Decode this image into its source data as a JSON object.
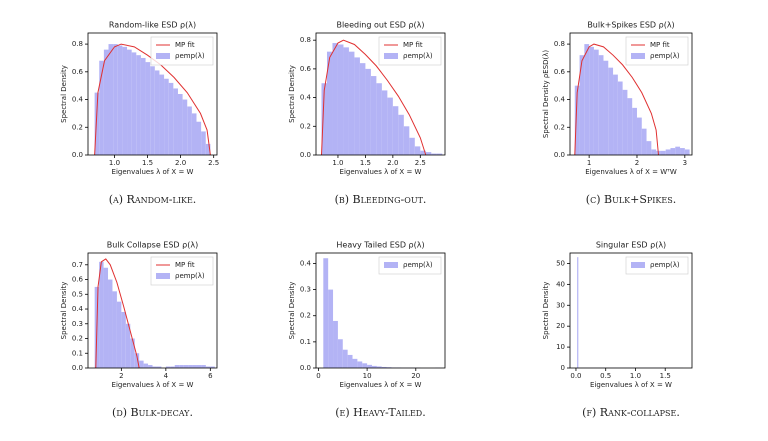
{
  "chart_data": [
    {
      "type": "histogram",
      "title": "Random-like ESD ρ(λ)",
      "xlabel": "Eigenvalues λ of X = W",
      "ylabel": "Spectral Density",
      "caption": "(a) Random-like.",
      "xlim": [
        0.6,
        2.55
      ],
      "ylim": [
        0,
        0.88
      ],
      "xticks": [
        {
          "value": 1.0,
          "label": "1.0"
        },
        1.5,
        {
          "value": 2.0,
          "label": "2.0"
        },
        2.5
      ],
      "yticks": [
        {
          "value": 0,
          "label": "0.0"
        },
        0.2,
        0.4,
        0.6,
        0.8
      ],
      "bins": [
        0.7,
        0.77,
        0.84,
        0.91,
        0.98,
        1.05,
        1.12,
        1.19,
        1.26,
        1.33,
        1.4,
        1.47,
        1.54,
        1.61,
        1.68,
        1.75,
        1.82,
        1.89,
        1.96,
        2.03,
        2.1,
        2.17,
        2.24,
        2.31,
        2.38,
        2.45
      ],
      "series": [
        {
          "name": "ρemp(λ)",
          "color": "#b3b3f5",
          "values": [
            0.45,
            0.68,
            0.76,
            0.8,
            0.8,
            0.79,
            0.78,
            0.76,
            0.74,
            0.72,
            0.7,
            0.67,
            0.64,
            0.61,
            0.58,
            0.55,
            0.52,
            0.48,
            0.44,
            0.4,
            0.35,
            0.3,
            0.24,
            0.17,
            0.08
          ]
        }
      ],
      "fit": {
        "name": "MP fit",
        "color": "#e03030",
        "x": [
          0.7,
          0.75,
          0.85,
          1.0,
          1.1,
          1.3,
          1.5,
          1.7,
          1.9,
          2.1,
          2.3,
          2.4,
          2.45
        ],
        "values": [
          0,
          0.45,
          0.68,
          0.78,
          0.8,
          0.78,
          0.72,
          0.65,
          0.56,
          0.45,
          0.3,
          0.18,
          0
        ]
      }
    },
    {
      "type": "histogram",
      "title": "Bleeding out ESD ρ(λ)",
      "xlabel": "Eigenvalues λ of X = W",
      "ylabel": "Spectral Density",
      "caption": "(b) Bleeding-out.",
      "xlim": [
        0.6,
        2.95
      ],
      "ylim": [
        0,
        0.85
      ],
      "xticks": [
        {
          "value": 1.0,
          "label": "1.0"
        },
        1.5,
        {
          "value": 2.0,
          "label": "2.0"
        },
        2.5
      ],
      "yticks": [
        {
          "value": 0,
          "label": "0.0"
        },
        0.2,
        0.4,
        0.6,
        0.8
      ],
      "bins": [
        0.7,
        0.8,
        0.9,
        1.0,
        1.1,
        1.2,
        1.3,
        1.4,
        1.5,
        1.6,
        1.7,
        1.8,
        1.9,
        2.0,
        2.1,
        2.2,
        2.3,
        2.4,
        2.5,
        2.6,
        2.7,
        2.8,
        2.9
      ],
      "series": [
        {
          "name": "ρemp(λ)",
          "color": "#b3b3f5",
          "values": [
            0.5,
            0.72,
            0.78,
            0.77,
            0.75,
            0.72,
            0.68,
            0.64,
            0.6,
            0.55,
            0.5,
            0.45,
            0.4,
            0.34,
            0.28,
            0.2,
            0.12,
            0.06,
            0.03,
            0.02,
            0.01,
            0.01
          ]
        }
      ],
      "fit": {
        "name": "MP fit",
        "color": "#e03030",
        "x": [
          0.7,
          0.75,
          0.85,
          1.0,
          1.1,
          1.3,
          1.5,
          1.7,
          1.9,
          2.1,
          2.3,
          2.5,
          2.6
        ],
        "values": [
          0,
          0.45,
          0.68,
          0.78,
          0.8,
          0.77,
          0.7,
          0.62,
          0.52,
          0.41,
          0.28,
          0.12,
          0
        ]
      }
    },
    {
      "type": "histogram",
      "title": "Bulk+Spikes ESD ρ(λ)",
      "xlabel": "Eigenvalues λ of X = WᵀW",
      "ylabel": "Spectral Density ρESD(λ)",
      "caption": "(c) Bulk+Spikes.",
      "xlim": [
        0.6,
        3.15
      ],
      "ylim": [
        0,
        0.88
      ],
      "xticks": [
        1,
        2,
        3
      ],
      "yticks": [
        {
          "value": 0,
          "label": "0.0"
        },
        0.2,
        0.4,
        0.6,
        0.8
      ],
      "bins": [
        0.7,
        0.8,
        0.9,
        1.0,
        1.1,
        1.2,
        1.3,
        1.4,
        1.5,
        1.6,
        1.7,
        1.8,
        1.9,
        2.0,
        2.1,
        2.2,
        2.3,
        2.4,
        2.5,
        2.6,
        2.7,
        2.8,
        2.9,
        3.0,
        3.1
      ],
      "series": [
        {
          "name": "ρemp(λ)",
          "color": "#b3b3f5",
          "values": [
            0.5,
            0.72,
            0.8,
            0.78,
            0.76,
            0.72,
            0.68,
            0.63,
            0.58,
            0.53,
            0.47,
            0.41,
            0.34,
            0.27,
            0.19,
            0.1,
            0.04,
            0.03,
            0.03,
            0.04,
            0.05,
            0.06,
            0.05,
            0.04
          ]
        }
      ],
      "fit": {
        "name": "MP fit",
        "color": "#e03030",
        "x": [
          0.7,
          0.75,
          0.85,
          1.0,
          1.1,
          1.3,
          1.5,
          1.7,
          1.9,
          2.1,
          2.3,
          2.4,
          2.45
        ],
        "values": [
          0,
          0.45,
          0.68,
          0.78,
          0.8,
          0.78,
          0.72,
          0.65,
          0.56,
          0.45,
          0.3,
          0.18,
          0
        ]
      }
    },
    {
      "type": "histogram",
      "title": "Bulk Collapse ESD ρ(λ)",
      "xlabel": "Eigenvalues λ of X = W",
      "ylabel": "Spectral Density",
      "caption": "(d) Bulk-decay.",
      "xlim": [
        0.5,
        6.3
      ],
      "ylim": [
        0,
        0.78
      ],
      "xticks": [
        2,
        4,
        6
      ],
      "yticks": [
        {
          "value": 0,
          "label": "0.0"
        },
        0.1,
        0.2,
        0.3,
        0.4,
        0.5,
        0.6,
        0.7
      ],
      "bins": [
        0.8,
        1.0,
        1.2,
        1.4,
        1.6,
        1.8,
        2.0,
        2.2,
        2.4,
        2.6,
        2.8,
        3.0,
        3.2,
        3.4,
        3.6,
        3.8,
        4.0,
        4.2,
        4.4,
        4.6,
        4.8,
        5.0,
        5.2,
        5.4,
        5.6,
        5.8,
        6.0,
        6.2
      ],
      "series": [
        {
          "name": "ρemp(λ)",
          "color": "#b3b3f5",
          "values": [
            0.55,
            0.72,
            0.68,
            0.6,
            0.52,
            0.45,
            0.38,
            0.3,
            0.2,
            0.1,
            0.05,
            0.03,
            0.02,
            0.01,
            0.01,
            0,
            0.01,
            0.01,
            0.02,
            0.02,
            0.02,
            0.02,
            0.02,
            0.02,
            0.02,
            0.01,
            0.01
          ]
        }
      ],
      "fit": {
        "name": "MP fit",
        "color": "#e03030",
        "x": [
          0.85,
          0.95,
          1.1,
          1.3,
          1.5,
          1.8,
          2.1,
          2.4,
          2.7,
          2.8
        ],
        "values": [
          0,
          0.55,
          0.72,
          0.74,
          0.7,
          0.58,
          0.42,
          0.25,
          0.08,
          0
        ]
      }
    },
    {
      "type": "histogram",
      "title": "Heavy Tailed ESD ρ(λ)",
      "xlabel": "Eigenvalues λ of X = W",
      "ylabel": "Spectral Density",
      "caption": "(e) Heavy-Tailed.",
      "xlim": [
        -0.5,
        26
      ],
      "ylim": [
        0,
        0.44
      ],
      "xticks": [
        0,
        10,
        20
      ],
      "yticks": [
        {
          "value": 0,
          "label": "0.0"
        },
        0.1,
        0.2,
        0.3,
        0.4
      ],
      "bins": [
        1,
        2,
        3,
        4,
        5,
        6,
        7,
        8,
        9,
        10,
        11,
        12,
        13,
        14,
        15,
        16,
        17,
        18,
        19,
        20,
        21,
        22,
        23,
        24,
        25
      ],
      "series": [
        {
          "name": "ρemp(λ)",
          "color": "#b3b3f5",
          "values": [
            0.42,
            0.3,
            0.18,
            0.11,
            0.07,
            0.05,
            0.035,
            0.025,
            0.018,
            0.012,
            0.008,
            0.006,
            0.004,
            0.003,
            0.002,
            0.002,
            0.001,
            0.001,
            0.001,
            0.001,
            0,
            0,
            0,
            0.001
          ]
        }
      ]
    },
    {
      "type": "histogram",
      "title": "Singular ESD ρ(λ)",
      "xlabel": "Eigenvalues λ of X = W",
      "ylabel": "Spectral Density",
      "caption": "(f) Rank-collapse.",
      "xlim": [
        -0.1,
        1.95
      ],
      "ylim": [
        0,
        55
      ],
      "xticks": [
        {
          "value": 0,
          "label": "0.0"
        },
        0.5,
        {
          "value": 1.0,
          "label": "1.0"
        },
        1.5
      ],
      "yticks": [
        0,
        10,
        20,
        30,
        40,
        50
      ],
      "bins": [
        0.02,
        0.04,
        0.3,
        0.6,
        0.9,
        1.2,
        1.5,
        1.8
      ],
      "series": [
        {
          "name": "ρemp(λ)",
          "color": "#b3b3f5",
          "values": [
            53,
            0.1,
            0.1,
            0.1,
            0.1,
            0.1,
            0.1
          ]
        }
      ]
    }
  ]
}
